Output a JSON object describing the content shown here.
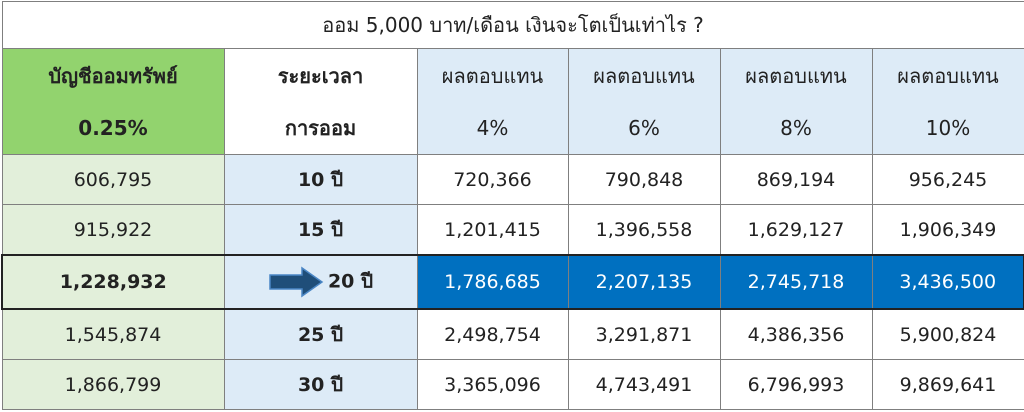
{
  "table": {
    "title": "ออม 5,000 บาท/เดือน เงินจะโตเป็นเท่าไร ?",
    "header": [
      [
        "บัญชีออมทรัพย์",
        "0.25%"
      ],
      [
        "ระยะเวลา",
        "การออม"
      ],
      [
        "ผลตอบแทน",
        "4%"
      ],
      [
        "ผลตอบแทน",
        "6%"
      ],
      [
        "ผลตอบแทน",
        "8%"
      ],
      [
        "ผลตอบแทน",
        "10%"
      ]
    ],
    "rows": [
      [
        "606,795",
        "10 ปี",
        "720,366",
        "790,848",
        "869,194",
        "956,245"
      ],
      [
        "915,922",
        "15 ปี",
        "1,201,415",
        "1,396,558",
        "1,629,127",
        "1,906,349"
      ],
      [
        "1,228,932",
        "20 ปี",
        "1,786,685",
        "2,207,135",
        "2,745,718",
        "3,436,500"
      ],
      [
        "1,545,874",
        "25 ปี",
        "2,498,754",
        "3,291,871",
        "4,386,356",
        "5,900,824"
      ],
      [
        "1,866,799",
        "30 ปี",
        "3,365,096",
        "4,743,491",
        "6,796,993",
        "9,869,641"
      ]
    ],
    "highlight_row": 2
  }
}
